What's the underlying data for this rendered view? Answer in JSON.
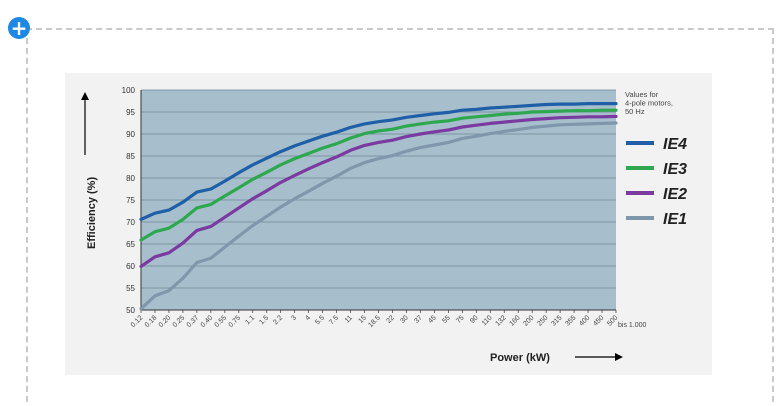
{
  "ui": {
    "add_icon": "plus-circle-icon",
    "add_label": "+"
  },
  "chart_data": {
    "type": "line",
    "xlabel": "Power (kW)",
    "ylabel": "Efficiency (%)",
    "ylim": [
      50,
      100
    ],
    "yticks": [
      "100",
      "95",
      "90",
      "85",
      "80",
      "75",
      "70",
      "65",
      "60",
      "55",
      "50"
    ],
    "x": [
      "0.12",
      "0.18",
      "0.20",
      "0.25",
      "0.37",
      "0.40",
      "0.55",
      "0.75",
      "1.1",
      "1.5",
      "2.2",
      "3",
      "4",
      "5.5",
      "7.5",
      "11",
      "15",
      "18.5",
      "22",
      "30",
      "37",
      "45",
      "55",
      "75",
      "90",
      "110",
      "132",
      "160",
      "200",
      "250",
      "315",
      "355",
      "400",
      "450",
      "500"
    ],
    "x_extra_label": "bis 1.000",
    "note": "Values for 4-pole motors, 50 Hz",
    "grid": true,
    "legend_position": "right",
    "series": [
      {
        "name": "IE4",
        "color": "#1f5fa8",
        "values": [
          70.6,
          72.0,
          72.7,
          74.5,
          76.8,
          77.5,
          79.3,
          81.2,
          83.0,
          84.5,
          86.0,
          87.3,
          88.4,
          89.5,
          90.4,
          91.5,
          92.3,
          92.8,
          93.2,
          93.8,
          94.2,
          94.6,
          94.9,
          95.4,
          95.6,
          95.9,
          96.1,
          96.3,
          96.5,
          96.7,
          96.8,
          96.8,
          96.9,
          96.9,
          96.9
        ]
      },
      {
        "name": "IE3",
        "color": "#2ea84f",
        "values": [
          65.9,
          67.8,
          68.6,
          70.6,
          73.2,
          74.0,
          75.9,
          77.8,
          79.7,
          81.3,
          83.0,
          84.4,
          85.6,
          86.8,
          87.8,
          89.1,
          90.1,
          90.7,
          91.1,
          91.8,
          92.3,
          92.7,
          93.0,
          93.6,
          93.9,
          94.2,
          94.5,
          94.7,
          95.0,
          95.1,
          95.2,
          95.3,
          95.3,
          95.4,
          95.4
        ]
      },
      {
        "name": "IE2",
        "color": "#7a3aa0",
        "values": [
          59.9,
          62.1,
          63.0,
          65.2,
          68.1,
          69.0,
          71.1,
          73.2,
          75.3,
          77.1,
          79.0,
          80.6,
          82.1,
          83.5,
          84.8,
          86.3,
          87.4,
          88.1,
          88.6,
          89.4,
          90.0,
          90.5,
          90.9,
          91.6,
          92.0,
          92.4,
          92.7,
          93.0,
          93.3,
          93.5,
          93.7,
          93.8,
          93.9,
          93.9,
          94.0
        ]
      },
      {
        "name": "IE1",
        "color": "#7f97aa",
        "values": [
          50.3,
          53.2,
          54.4,
          57.2,
          60.8,
          61.8,
          64.3,
          66.8,
          69.2,
          71.3,
          73.4,
          75.3,
          77.0,
          78.8,
          80.4,
          82.2,
          83.5,
          84.4,
          85.1,
          86.1,
          86.9,
          87.5,
          88.1,
          89.0,
          89.5,
          90.1,
          90.6,
          91.0,
          91.5,
          91.8,
          92.1,
          92.2,
          92.3,
          92.4,
          92.5
        ]
      }
    ]
  }
}
